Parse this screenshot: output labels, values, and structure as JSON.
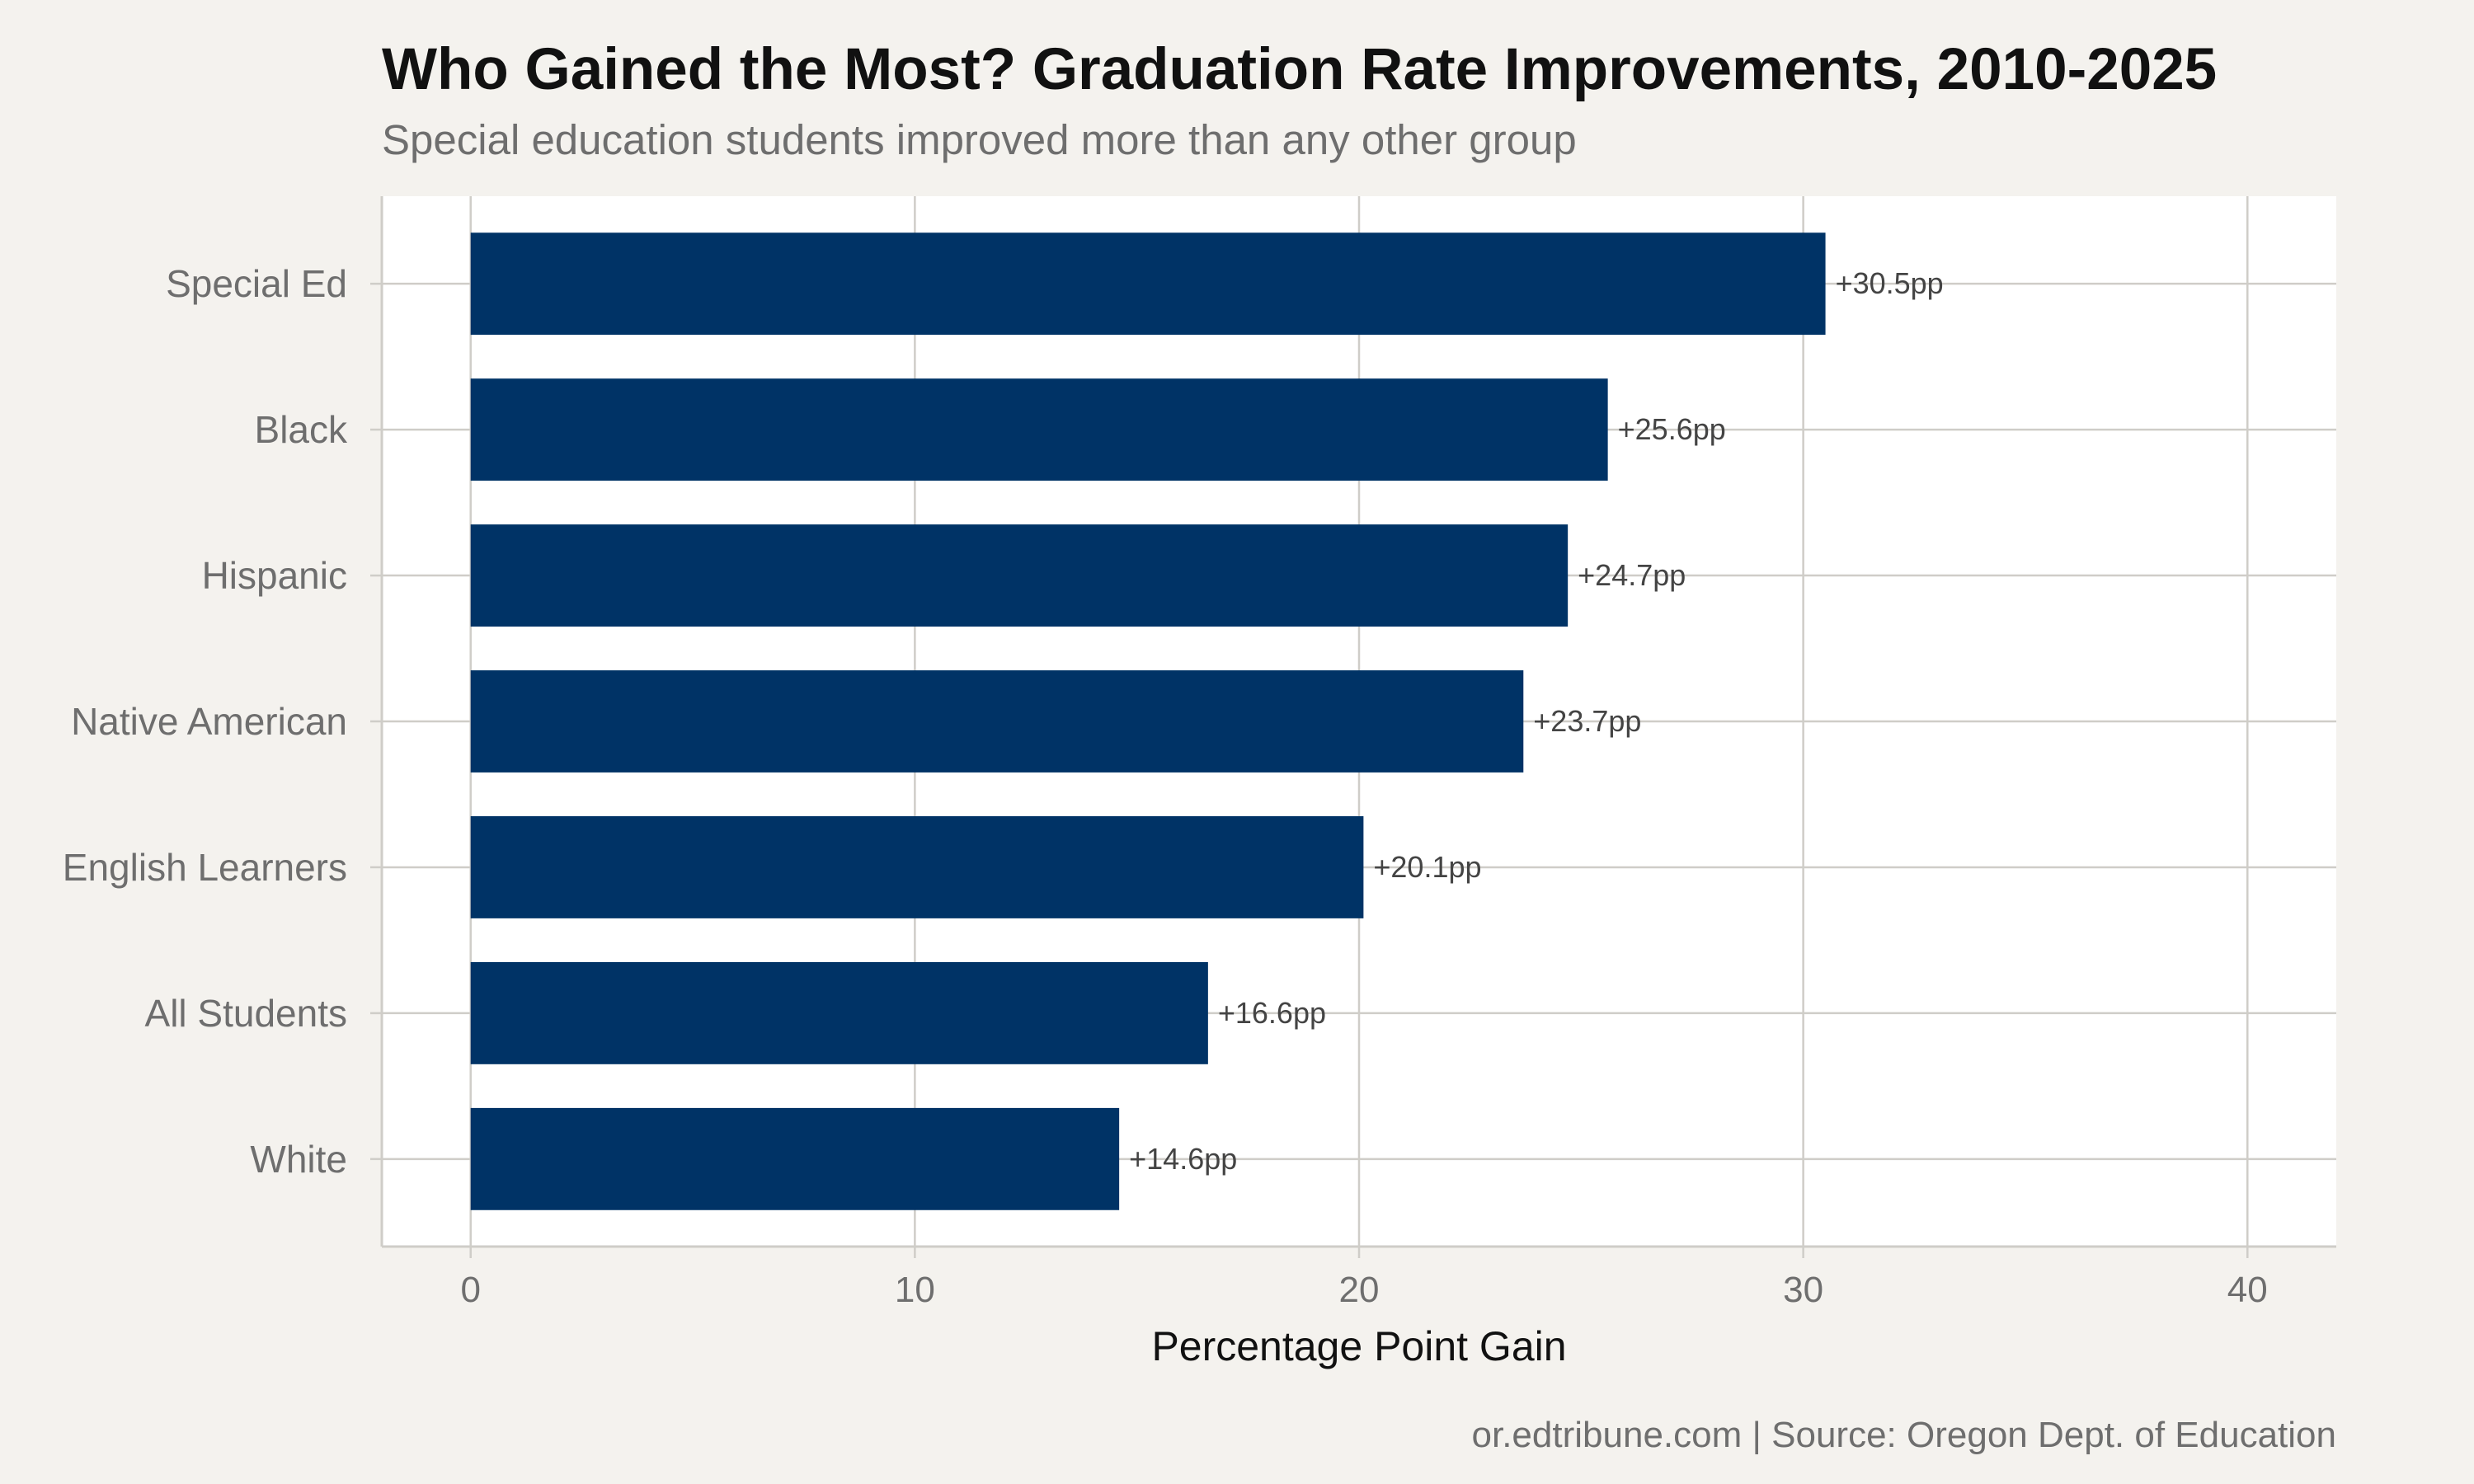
{
  "title": "Who Gained the Most? Graduation Rate Improvements, 2010-2025",
  "subtitle": "Special education students improved more than any other group",
  "caption": "or.edtribune.com | Source: Oregon Dept. of Education",
  "colors": {
    "bar": "#003366",
    "panel": "#ffffff",
    "background": "#f4f2ee",
    "grid": "#cfcdc8",
    "tick_text": "#6e6e6e",
    "label_text": "#444444"
  },
  "chart_data": {
    "type": "bar",
    "orientation": "horizontal",
    "title": "Who Gained the Most? Graduation Rate Improvements, 2010-2025",
    "subtitle": "Special education students improved more than any other group",
    "xlabel": "Percentage Point Gain",
    "ylabel": "",
    "categories": [
      "Special Ed",
      "Black",
      "Hispanic",
      "Native American",
      "English Learners",
      "All Students",
      "White"
    ],
    "values": [
      30.5,
      25.6,
      24.7,
      23.7,
      20.1,
      16.6,
      14.6
    ],
    "data_labels": [
      "+30.5pp",
      "+25.6pp",
      "+24.7pp",
      "+23.7pp",
      "+20.1pp",
      "+16.6pp",
      "+14.6pp"
    ],
    "xlim": [
      -2,
      42
    ],
    "xticks": [
      0,
      10,
      20,
      30,
      40
    ],
    "xtick_labels": [
      "0",
      "10",
      "20",
      "30",
      "40"
    ],
    "grid": true,
    "legend": "none"
  }
}
